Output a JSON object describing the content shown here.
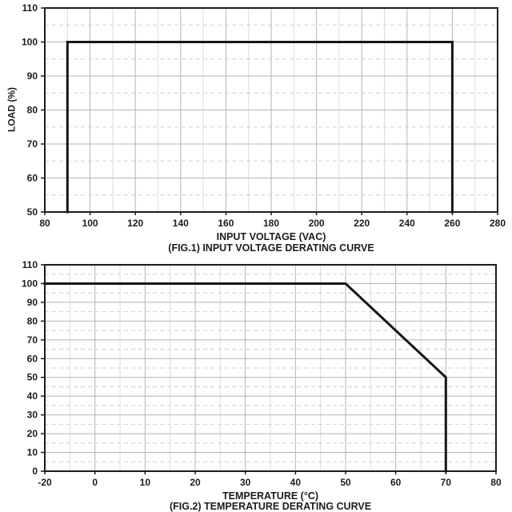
{
  "page_background": "#ffffff",
  "styles": {
    "axis_color": "#1c1c1c",
    "major_grid_color": "#b5b5b5",
    "minor_grid_color": "#dcdcdc",
    "minor_dash_color": "#cfcfcf",
    "label_color": "#1c1c1c",
    "line_color": "#161616"
  },
  "chart_data": [
    {
      "id": "fig1",
      "type": "line",
      "caption": "(FIG.1) INPUT VOLTAGE DERATING CURVE",
      "xlabel": "INPUT VOLTAGE (VAC)",
      "ylabel": "LOAD (%)",
      "xlim": [
        80,
        280
      ],
      "ylim": [
        50,
        110
      ],
      "x_ticks": [
        80,
        100,
        120,
        140,
        160,
        180,
        200,
        220,
        240,
        260,
        280
      ],
      "y_ticks": [
        50,
        60,
        70,
        80,
        90,
        100,
        110
      ],
      "x_tick_spacing": "equal",
      "grid": {
        "major": "solid",
        "minor_x": "solid-light",
        "minor_y": "dashed"
      },
      "legend": "none",
      "series": [
        {
          "name": "load-vs-input-voltage",
          "color": "#161616",
          "width": 3,
          "points": [
            [
              90,
              50
            ],
            [
              90,
              100
            ],
            [
              260,
              100
            ],
            [
              260,
              50
            ]
          ]
        }
      ]
    },
    {
      "id": "fig2",
      "type": "line",
      "caption": "(FIG.2) TEMPERATURE DERATING CURVE",
      "xlabel": "TEMPERATURE (°C)",
      "ylabel": "",
      "xlim": [
        -20,
        80
      ],
      "ylim": [
        0,
        110
      ],
      "x_ticks": [
        -20,
        0,
        10,
        20,
        30,
        40,
        50,
        60,
        70,
        80
      ],
      "y_ticks": [
        0,
        10,
        20,
        30,
        40,
        50,
        60,
        70,
        80,
        90,
        100,
        110
      ],
      "x_tick_spacing": "equal",
      "grid": {
        "major": "solid",
        "minor_x": "solid-light",
        "minor_y": "dashed"
      },
      "legend": "none",
      "series": [
        {
          "name": "load-vs-temperature",
          "color": "#161616",
          "width": 3,
          "points": [
            [
              -20,
              100
            ],
            [
              50,
              100
            ],
            [
              70,
              50
            ],
            [
              70,
              0
            ]
          ]
        }
      ]
    }
  ]
}
